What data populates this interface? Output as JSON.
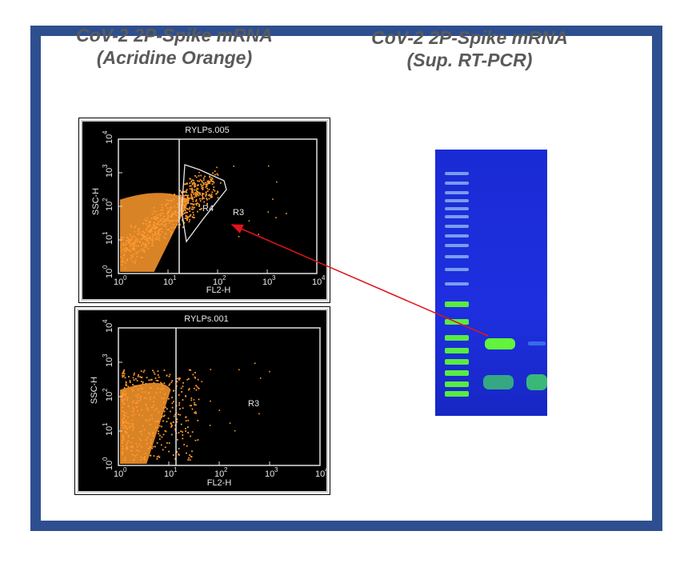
{
  "titles": {
    "left_line1": "CoV-2 2P-Spike mRNA",
    "left_line2": "(Acridine Orange)",
    "right_line1": "CoV-2 2P-Spike mRNA",
    "right_line2": "(Sup. RT-PCR)"
  },
  "plots": [
    {
      "file": "RYLPs.005",
      "ylabel": "SSC-H",
      "xlabel": "FL2-H",
      "gate_poly_label": "R4",
      "gate_rect_label": "R3"
    },
    {
      "file": "RYLPs.001",
      "ylabel": "SSC-H",
      "xlabel": "FL2-H",
      "gate_rect_label": "R3"
    }
  ],
  "axis": {
    "base": "10",
    "exponents": [
      "0",
      "1",
      "2",
      "3",
      "4"
    ]
  },
  "colors": {
    "frame": "#2e4f8f",
    "title_text": "#5a5a5a",
    "dots": "#ff9a2e",
    "gel_bg": "#1e2fe0",
    "band": "#66ff33",
    "arrow": "#e0141a"
  }
}
